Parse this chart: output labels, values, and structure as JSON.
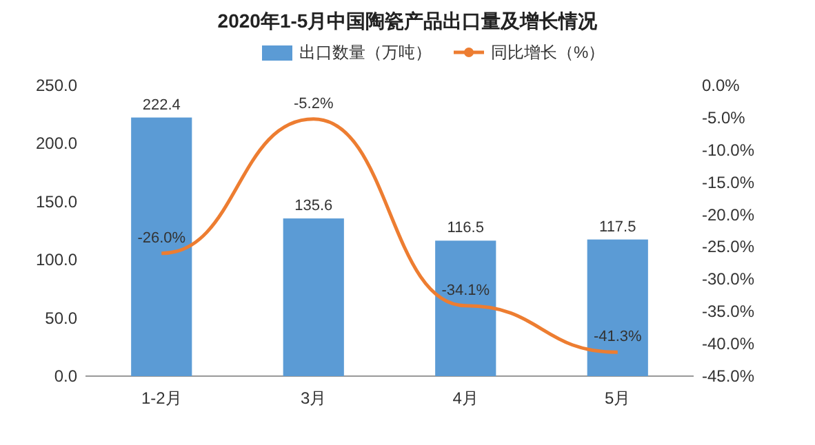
{
  "chart_data": {
    "type": "bar",
    "title": "2020年1-5月中国陶瓷产品出口量及增长情况",
    "categories": [
      "1-2月",
      "3月",
      "4月",
      "5月"
    ],
    "series": [
      {
        "name": "出口数量（万吨）",
        "color": "#5b9bd5",
        "values": [
          222.4,
          135.6,
          116.5,
          117.5
        ],
        "value_labels": [
          "222.4",
          "135.6",
          "116.5",
          "117.5"
        ]
      },
      {
        "name": "同比增长（%）",
        "type": "line",
        "axis": "y2",
        "color": "#ed7d31",
        "values": [
          -26.0,
          -5.2,
          -34.1,
          -41.3
        ],
        "value_labels": [
          "-26.0%",
          "-5.2%",
          "-34.1%",
          "-41.3%"
        ]
      }
    ],
    "ylim": [
      0,
      250
    ],
    "yticks": [
      {
        "value": 0,
        "label": "0.0"
      },
      {
        "value": 50,
        "label": "50.0"
      },
      {
        "value": 100,
        "label": "100.0"
      },
      {
        "value": 150,
        "label": "150.0"
      },
      {
        "value": 200,
        "label": "200.0"
      },
      {
        "value": 250,
        "label": "250.0"
      }
    ],
    "y2lim": [
      -45,
      0
    ],
    "y2ticks": [
      {
        "value": 0,
        "label": "0.0%"
      },
      {
        "value": -5,
        "label": "-5.0%"
      },
      {
        "value": -10,
        "label": "-10.0%"
      },
      {
        "value": -15,
        "label": "-15.0%"
      },
      {
        "value": -20,
        "label": "-20.0%"
      },
      {
        "value": -25,
        "label": "-25.0%"
      },
      {
        "value": -30,
        "label": "-30.0%"
      },
      {
        "value": -35,
        "label": "-35.0%"
      },
      {
        "value": -40,
        "label": "-40.0%"
      },
      {
        "value": -45,
        "label": "-45.0%"
      }
    ],
    "legend": "top",
    "grid": false
  }
}
